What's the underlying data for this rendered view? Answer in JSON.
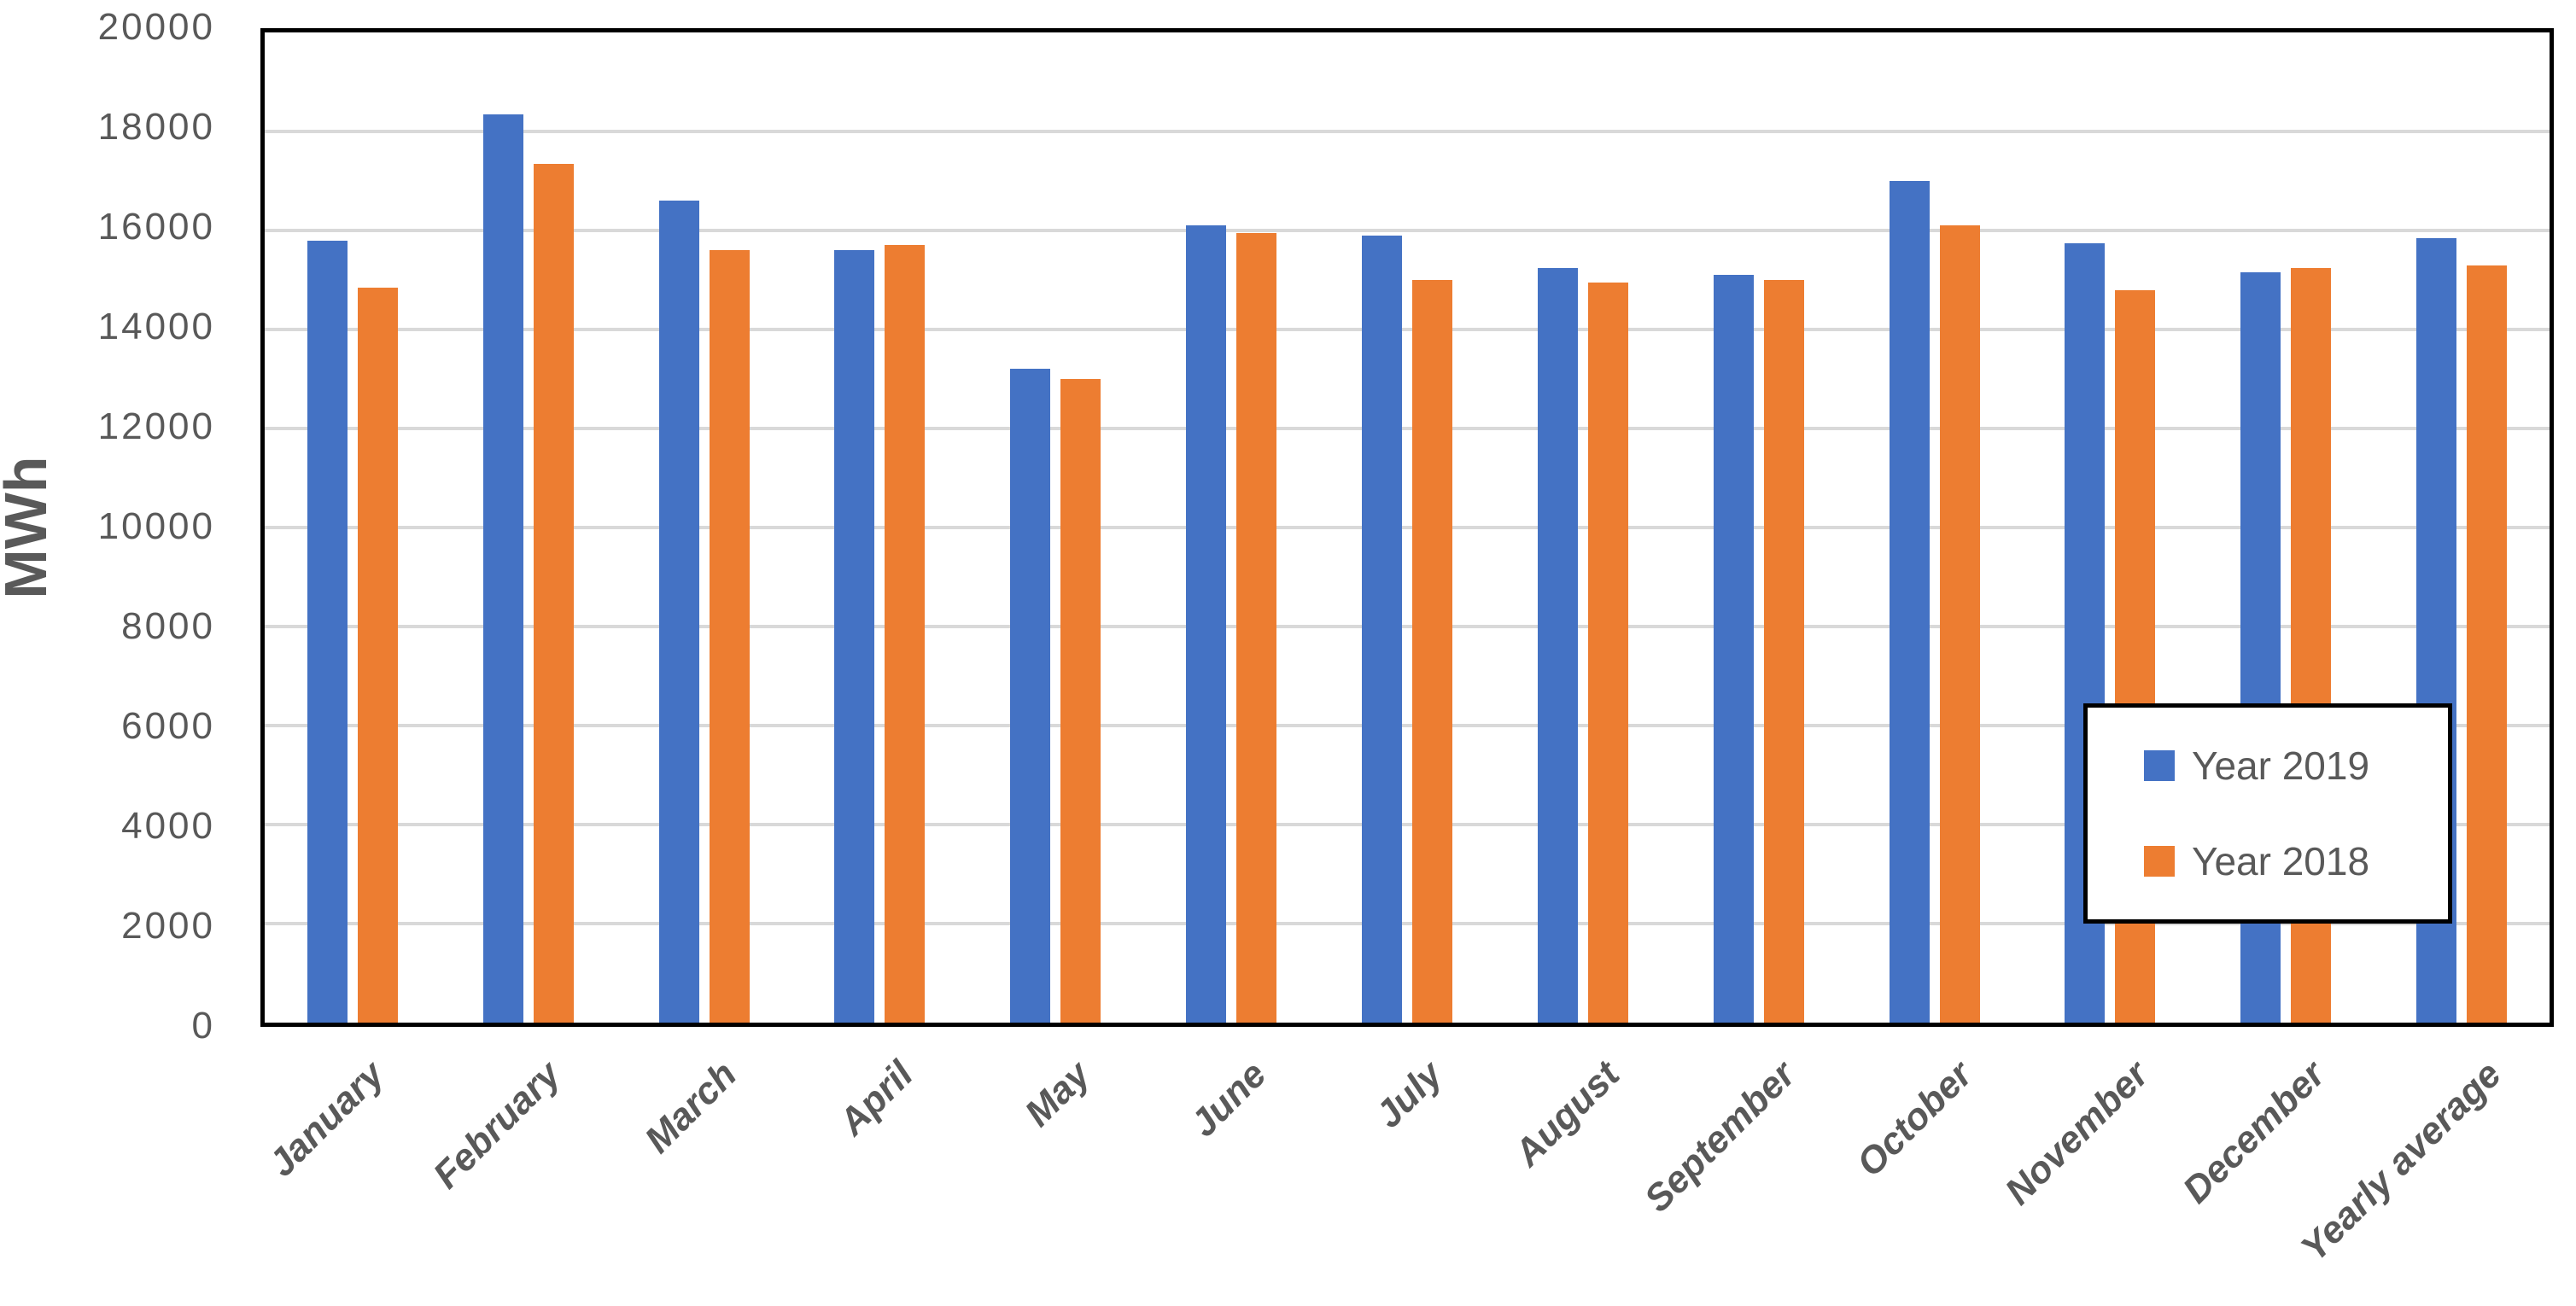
{
  "chart_data": {
    "type": "bar",
    "title": "",
    "xlabel": "",
    "ylabel": "MWh",
    "ylim": [
      0,
      20000
    ],
    "y_tick_step": 2000,
    "y_ticks": [
      0,
      2000,
      4000,
      6000,
      8000,
      10000,
      12000,
      14000,
      16000,
      18000,
      20000
    ],
    "grid": true,
    "legend_position": "inside-right",
    "categories": [
      "January",
      "February",
      "March",
      "April",
      "May",
      "June",
      "July",
      "August",
      "September",
      "October",
      "November",
      "December",
      "Yearly average"
    ],
    "series": [
      {
        "name": "Year 2019",
        "color": "#4472C4",
        "values": [
          15800,
          18350,
          16600,
          15600,
          13200,
          16100,
          15900,
          15250,
          15100,
          17000,
          15750,
          15150,
          15850
        ]
      },
      {
        "name": "Year 2018",
        "color": "#ED7D31",
        "values": [
          14850,
          17350,
          15600,
          15700,
          13000,
          15950,
          15000,
          14950,
          15000,
          16100,
          14800,
          15250,
          15300
        ]
      }
    ]
  }
}
